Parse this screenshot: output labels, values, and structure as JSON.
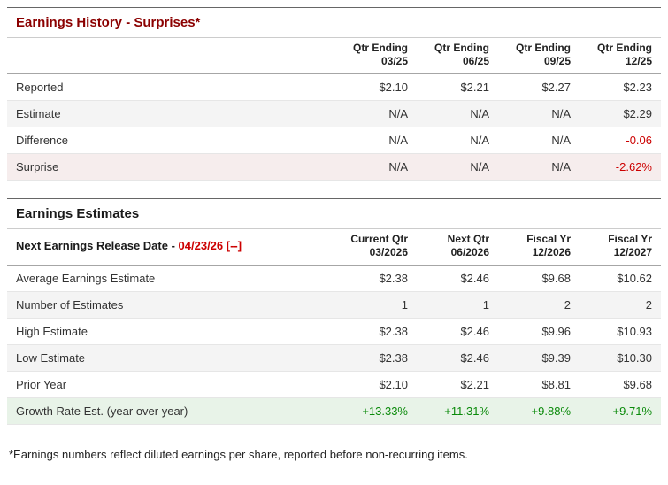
{
  "colors": {
    "title_red": "#8b0000",
    "negative_red": "#cc0000",
    "positive_green": "#0a8a0a",
    "alt_bg": "#f4f4f4",
    "surprise_bg": "#f6eded",
    "growth_bg": "#e8f3e8"
  },
  "surprises": {
    "title": "Earnings History - Surprises*",
    "columns": [
      {
        "line1": "Qtr Ending",
        "line2": "03/25"
      },
      {
        "line1": "Qtr Ending",
        "line2": "06/25"
      },
      {
        "line1": "Qtr Ending",
        "line2": "09/25"
      },
      {
        "line1": "Qtr Ending",
        "line2": "12/25"
      }
    ],
    "rows": [
      {
        "label": "Reported",
        "values": [
          "$2.10",
          "$2.21",
          "$2.27",
          "$2.23"
        ]
      },
      {
        "label": "Estimate",
        "values": [
          "N/A",
          "N/A",
          "N/A",
          "$2.29"
        ]
      },
      {
        "label": "Difference",
        "values": [
          "N/A",
          "N/A",
          "N/A",
          "-0.06"
        ]
      },
      {
        "label": "Surprise",
        "values": [
          "N/A",
          "N/A",
          "N/A",
          "-2.62%"
        ]
      }
    ]
  },
  "estimates": {
    "title": "Earnings Estimates",
    "release_label": "Next Earnings Release Date - ",
    "release_date": "04/23/26",
    "release_suffix": "[--]",
    "columns": [
      {
        "line1": "Current Qtr",
        "line2": "03/2026"
      },
      {
        "line1": "Next Qtr",
        "line2": "06/2026"
      },
      {
        "line1": "Fiscal Yr",
        "line2": "12/2026"
      },
      {
        "line1": "Fiscal Yr",
        "line2": "12/2027"
      }
    ],
    "rows": [
      {
        "label": "Average Earnings Estimate",
        "values": [
          "$2.38",
          "$2.46",
          "$9.68",
          "$10.62"
        ]
      },
      {
        "label": "Number of Estimates",
        "values": [
          "1",
          "1",
          "2",
          "2"
        ]
      },
      {
        "label": "High Estimate",
        "values": [
          "$2.38",
          "$2.46",
          "$9.96",
          "$10.93"
        ]
      },
      {
        "label": "Low Estimate",
        "values": [
          "$2.38",
          "$2.46",
          "$9.39",
          "$10.30"
        ]
      },
      {
        "label": "Prior Year",
        "values": [
          "$2.10",
          "$2.21",
          "$8.81",
          "$9.68"
        ]
      },
      {
        "label": "Growth Rate Est. (year over year)",
        "values": [
          "+13.33%",
          "+11.31%",
          "+9.88%",
          "+9.71%"
        ]
      }
    ]
  },
  "footnote": "*Earnings numbers reflect diluted earnings per share, reported before non-recurring items."
}
